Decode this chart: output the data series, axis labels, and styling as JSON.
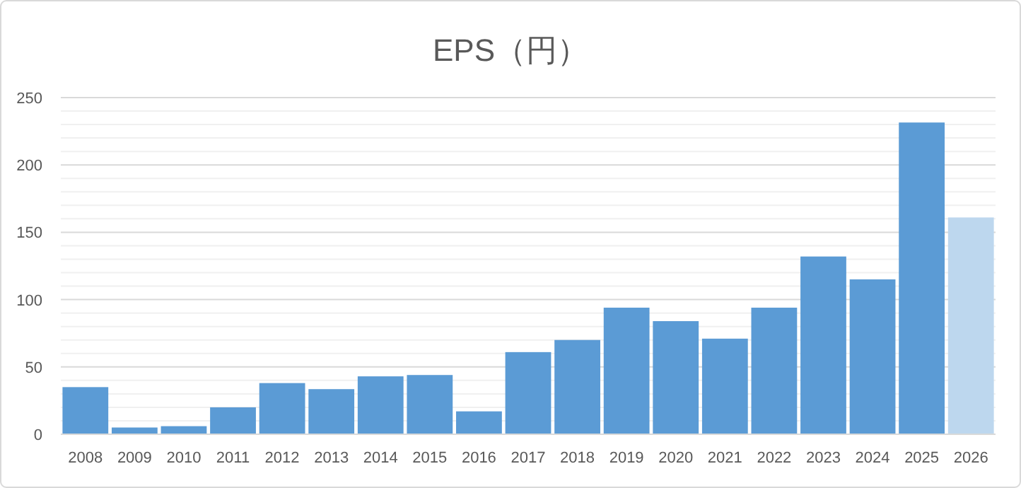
{
  "chart_data": {
    "type": "bar",
    "title": "EPS（円）",
    "categories": [
      "2008",
      "2009",
      "2010",
      "2011",
      "2012",
      "2013",
      "2014",
      "2015",
      "2016",
      "2017",
      "2018",
      "2019",
      "2020",
      "2021",
      "2022",
      "2023",
      "2024",
      "2025",
      "2026"
    ],
    "values": [
      35,
      5,
      6,
      20,
      38,
      33.5,
      43,
      44,
      17,
      61,
      70,
      94,
      84,
      71,
      94,
      132,
      115,
      231.5,
      161
    ],
    "colors": [
      "#5b9bd5",
      "#5b9bd5",
      "#5b9bd5",
      "#5b9bd5",
      "#5b9bd5",
      "#5b9bd5",
      "#5b9bd5",
      "#5b9bd5",
      "#5b9bd5",
      "#5b9bd5",
      "#5b9bd5",
      "#5b9bd5",
      "#5b9bd5",
      "#5b9bd5",
      "#5b9bd5",
      "#5b9bd5",
      "#5b9bd5",
      "#5b9bd5",
      "#bdd7ee"
    ],
    "ylim": [
      0,
      250
    ],
    "yticks": [
      0,
      {
        "value": 10,
        "label": null
      },
      {
        "value": 20,
        "label": null
      },
      {
        "value": 30,
        "label": null
      },
      {
        "value": 40,
        "label": null
      },
      50,
      {
        "value": 60,
        "label": null
      },
      {
        "value": 70,
        "label": null
      },
      {
        "value": 80,
        "label": null
      },
      {
        "value": 90,
        "label": null
      },
      100,
      {
        "value": 110,
        "label": null
      },
      {
        "value": 120,
        "label": null
      },
      {
        "value": 130,
        "label": null
      },
      {
        "value": 140,
        "label": null
      },
      150,
      {
        "value": 160,
        "label": null
      },
      {
        "value": 170,
        "label": null
      },
      {
        "value": 180,
        "label": null
      },
      {
        "value": 190,
        "label": null
      },
      200,
      {
        "value": 210,
        "label": null
      },
      {
        "value": 220,
        "label": null
      },
      {
        "value": 230,
        "label": null
      },
      {
        "value": 240,
        "label": null
      },
      250
    ],
    "grid": "y"
  }
}
